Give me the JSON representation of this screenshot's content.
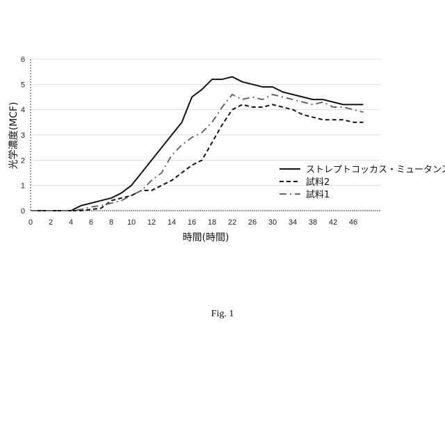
{
  "chart_data": {
    "type": "line",
    "title": "",
    "xlabel": "時間(時間)",
    "ylabel": "光学濃度(MCF)",
    "caption": "Fig. 1",
    "ylim": [
      0,
      6
    ],
    "yticks": [
      0,
      1,
      2,
      3,
      4,
      5,
      6
    ],
    "grid": true,
    "legend_position": "right",
    "x": [
      0,
      1,
      2,
      3,
      4,
      5,
      6,
      7,
      8,
      9,
      10,
      11,
      12,
      13,
      14,
      15,
      16,
      17,
      18,
      20,
      22,
      24,
      26,
      28,
      30,
      32,
      34,
      36,
      38,
      40,
      42,
      44,
      46,
      48
    ],
    "xtick_labels": [
      "0",
      "2",
      "4",
      "6",
      "8",
      "10",
      "12",
      "14",
      "16",
      "18",
      "22",
      "26",
      "30",
      "34",
      "38",
      "42",
      "46"
    ],
    "series": [
      {
        "name": "ストレプトコッカス・ミュータンス",
        "style": "solid",
        "color": "#111111",
        "values": [
          0,
          0,
          0,
          0,
          0,
          0.2,
          0.3,
          0.4,
          0.5,
          0.7,
          1.0,
          1.5,
          2.0,
          2.5,
          3.0,
          3.5,
          4.5,
          4.8,
          5.2,
          5.2,
          5.3,
          5.1,
          5.0,
          4.9,
          4.9,
          4.7,
          4.6,
          4.5,
          4.4,
          4.4,
          4.3,
          4.2,
          4.2,
          4.2
        ]
      },
      {
        "name": "試料2",
        "style": "dashed",
        "color": "#111111",
        "values": [
          0,
          0,
          0,
          0,
          0,
          0,
          0.05,
          0.1,
          0.4,
          0.5,
          0.6,
          0.8,
          0.8,
          1.0,
          1.2,
          1.5,
          1.8,
          2.0,
          2.7,
          3.4,
          4.0,
          4.2,
          4.1,
          4.1,
          4.2,
          4.1,
          4.0,
          3.8,
          3.7,
          3.6,
          3.6,
          3.6,
          3.5,
          3.5
        ]
      },
      {
        "name": "試料1",
        "style": "dash-dot",
        "color": "#666666",
        "values": [
          0,
          0,
          0,
          0,
          0,
          0.05,
          0.15,
          0.2,
          0.3,
          0.4,
          0.6,
          0.8,
          1.2,
          1.5,
          2.2,
          2.6,
          2.9,
          3.1,
          3.5,
          4.1,
          4.6,
          4.4,
          4.5,
          4.4,
          4.6,
          4.5,
          4.4,
          4.3,
          4.2,
          4.3,
          4.1,
          4.1,
          4.0,
          3.9
        ]
      }
    ]
  }
}
